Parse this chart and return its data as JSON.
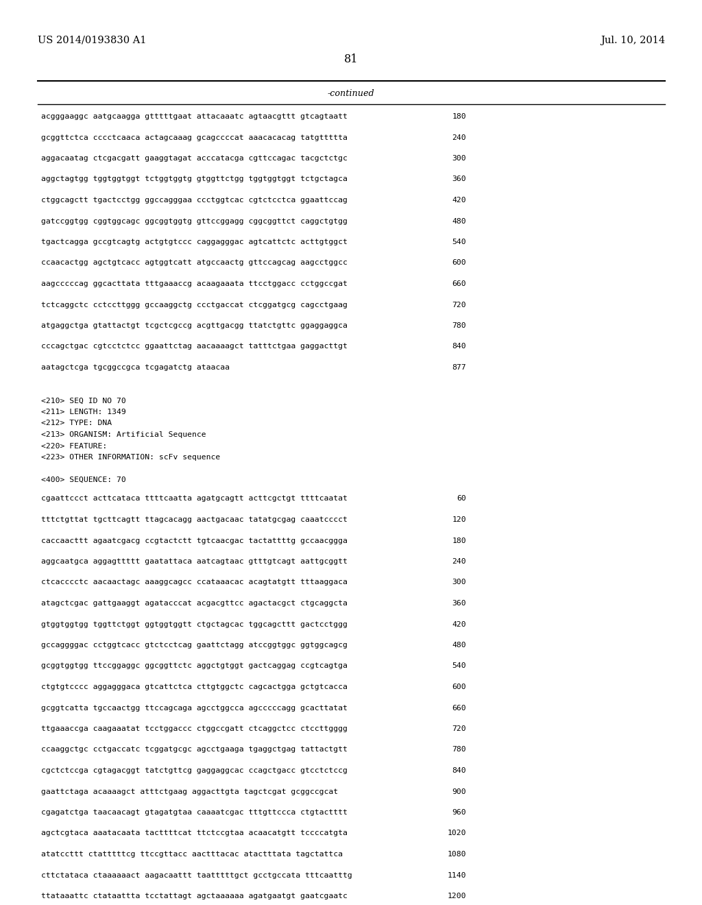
{
  "background_color": "#ffffff",
  "patent_number": "US 2014/0193830 A1",
  "date": "Jul. 10, 2014",
  "page_number": "81",
  "continued_label": "-continued",
  "header_font_size": 10.5,
  "body_font_size": 8.2,
  "mono_font": "monospace",
  "sequence_lines_part1": [
    [
      "acgggaaggc aatgcaagga gtttttgaat attacaaatc agtaacgttt gtcagtaatt",
      "180"
    ],
    [
      "gcggttctca cccctcaaca actagcaaag gcagccccat aaacacacag tatgttttta",
      "240"
    ],
    [
      "aggacaatag ctcgacgatt gaaggtagat acccatacga cgttccagac tacgctctgc",
      "300"
    ],
    [
      "aggctagtgg tggtggtggt tctggtggtg gtggttctgg tggtggtggt tctgctagca",
      "360"
    ],
    [
      "ctggcagctt tgactcctgg ggccagggaa ccctggtcac cgtctcctca ggaattccag",
      "420"
    ],
    [
      "gatccggtgg cggtggcagc ggcggtggtg gttccggagg cggcggttct caggctgtgg",
      "480"
    ],
    [
      "tgactcagga gccgtcagtg actgtgtccc caggagggac agtcattctc acttgtggct",
      "540"
    ],
    [
      "ccaacactgg agctgtcacc agtggtcatt atgccaactg gttccagcag aagcctggcc",
      "600"
    ],
    [
      "aagcccccag ggcacttata tttgaaaccg acaagaaata ttcctggacc cctggccgat",
      "660"
    ],
    [
      "tctcaggctc cctccttggg gccaaggctg ccctgaccat ctcggatgcg cagcctgaag",
      "720"
    ],
    [
      "atgaggctga gtattactgt tcgctcgccg acgttgacgg ttatctgttc ggaggaggca",
      "780"
    ],
    [
      "cccagctgac cgtcctctcc ggaattctag aacaaaagct tatttctgaa gaggacttgt",
      "840"
    ],
    [
      "aatagctcga tgcggccgca tcgagatctg ataacaa",
      "877"
    ]
  ],
  "metadata_lines": [
    "<210> SEQ ID NO 70",
    "<211> LENGTH: 1349",
    "<212> TYPE: DNA",
    "<213> ORGANISM: Artificial Sequence",
    "<220> FEATURE:",
    "<223> OTHER INFORMATION: scFv sequence"
  ],
  "sequence_header": "<400> SEQUENCE: 70",
  "sequence_lines_part2": [
    [
      "cgaattccct acttcataca ttttcaatta agatgcagtt acttcgctgt ttttcaatat",
      "60"
    ],
    [
      "tttctgttat tgcttcagtt ttagcacagg aactgacaac tatatgcgag caaatcccct",
      "120"
    ],
    [
      "caccaacttt agaatcgacg ccgtactctt tgtcaacgac tactattttg gccaacggga",
      "180"
    ],
    [
      "aggcaatgca aggagttttt gaatattaca aatcagtaac gtttgtcagt aattgcggtt",
      "240"
    ],
    [
      "ctcacccctc aacaactagc aaaggcagcc ccataaacac acagtatgtt tttaaggaca",
      "300"
    ],
    [
      "atagctcgac gattgaaggt agatacccat acgacgttcc agactacgct ctgcaggcta",
      "360"
    ],
    [
      "gtggtggtgg tggttctggt ggtggtggtt ctgctagcac tggcagcttt gactcctggg",
      "420"
    ],
    [
      "gccaggggac cctggtcacc gtctcctcag gaattctagg atccggtggc ggtggcagcg",
      "480"
    ],
    [
      "gcggtggtgg ttccggaggc ggcggttctc aggctgtggt gactcaggag ccgtcagtga",
      "540"
    ],
    [
      "ctgtgtcccc aggagggaca gtcattctca cttgtggctc cagcactgga gctgtcacca",
      "600"
    ],
    [
      "gcggtcatta tgccaactgg ttccagcaga agcctggcca agcccccagg gcacttatat",
      "660"
    ],
    [
      "ttgaaaccga caagaaatat tcctggaccc ctggccgatt ctcaggctcc ctccttgggg",
      "720"
    ],
    [
      "ccaaggctgc cctgaccatc tcggatgcgc agcctgaaga tgaggctgag tattactgtt",
      "780"
    ],
    [
      "cgctctccga cgtagacggt tatctgttcg gaggaggcac ccagctgacc gtcctctccg",
      "840"
    ],
    [
      "gaattctaga acaaaagct atttctgaag aggacttgta tagctcgat gcggccgcat",
      "900"
    ],
    [
      "cgagatctga taacaacagt gtagatgtaa caaaatcgac tttgttccca ctgtactttt",
      "960"
    ],
    [
      "agctcgtaca aaatacaata tacttttcat ttctccgtaa acaacatgtt tccccatgta",
      "1020"
    ],
    [
      "atatccttt ctatttttcg ttccgttacc aactttacac atactttata tagctattca",
      "1080"
    ],
    [
      "cttctataca ctaaaaaact aagacaattt taatttttgct gcctgccata tttcaatttg",
      "1140"
    ],
    [
      "ttataaattc ctataattta tcctattagt agctaaaaaa agatgaatgt gaatcgaatc",
      "1200"
    ]
  ]
}
